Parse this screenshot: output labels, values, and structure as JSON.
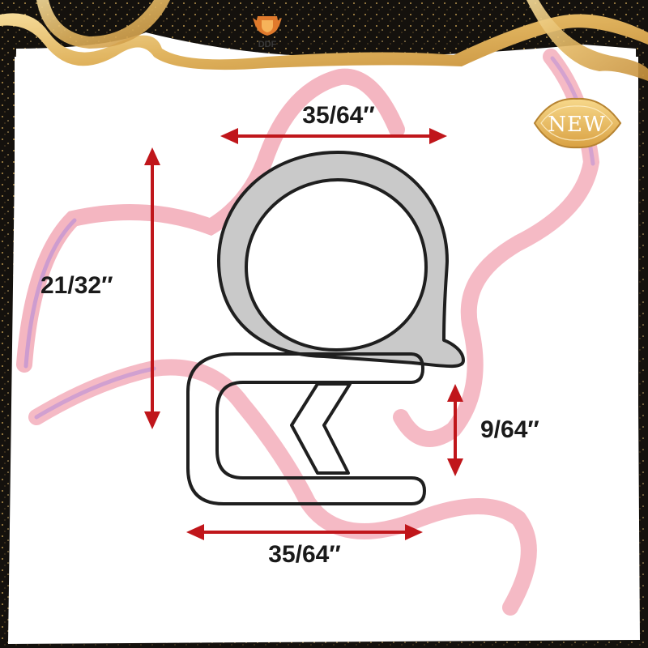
{
  "brand": {
    "logo_text": "DDF",
    "logo_icon": "crest-icon"
  },
  "badge": {
    "text": "NEW"
  },
  "dimensions": {
    "top_width": "35/64″",
    "height": "21/32″",
    "gap": "9/64″",
    "bottom_width": "35/64″"
  },
  "colors": {
    "arrow": "#c0161b",
    "bulb_fill": "#c9c9c9",
    "outline": "#1f1f1f",
    "ribbon": "#f2a9b6",
    "gold": "#e2b867",
    "background": "#ffffff",
    "frame": "#1a1712"
  }
}
